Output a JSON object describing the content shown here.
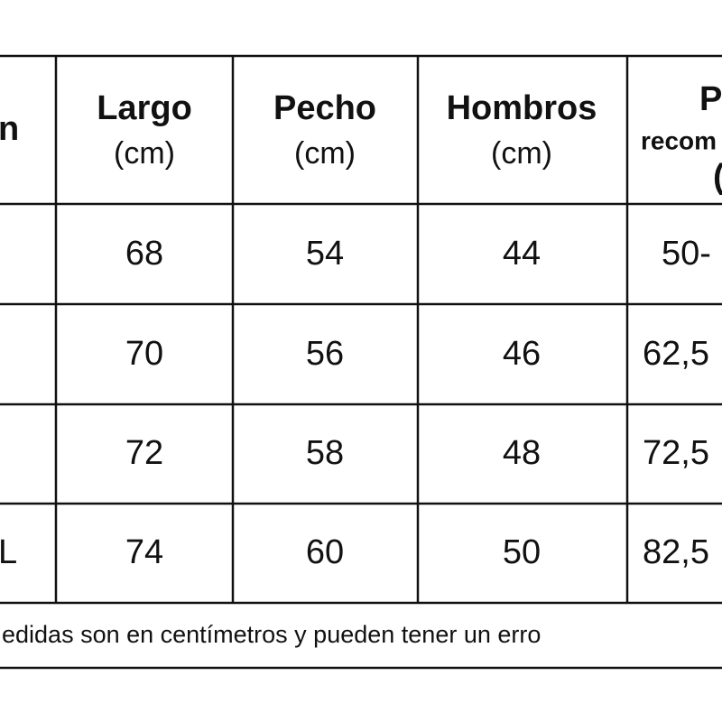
{
  "table": {
    "header": [
      [
        "n"
      ],
      [
        "Largo",
        "(cm)"
      ],
      [
        "Pecho",
        "(cm)"
      ],
      [
        "Hombros",
        "(cm)"
      ],
      [
        "P",
        "recom",
        "("
      ]
    ],
    "rows": [
      [
        null,
        "68",
        "54",
        "44",
        "50-"
      ],
      [
        null,
        "70",
        "56",
        "46",
        "62,5"
      ],
      [
        null,
        "72",
        "58",
        "48",
        "72,5"
      ],
      [
        "L",
        "74",
        "60",
        "50",
        "82,5"
      ]
    ]
  },
  "footer": "edidas son en centímetros y pueden tener un erro"
}
